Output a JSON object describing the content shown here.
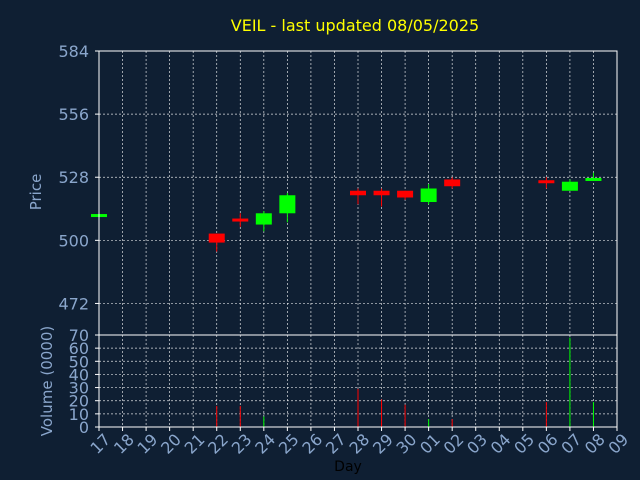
{
  "chart_data": {
    "type": "candlestick",
    "title": "VEIL - last updated 08/05/2025",
    "colors": {
      "background": "#0f1f33",
      "up": "#00ff00",
      "down": "#ff0000",
      "title": "#ffff00",
      "tick": "#8aa6cc",
      "grid": "#ffffff"
    },
    "x_categories": [
      "17",
      "18",
      "19",
      "20",
      "21",
      "22",
      "23",
      "24",
      "25",
      "26",
      "27",
      "28",
      "29",
      "30",
      "01",
      "02",
      "03",
      "04",
      "05",
      "06",
      "07",
      "08",
      "09"
    ],
    "xlabel": "Day",
    "price": {
      "ylabel": "Price",
      "ylim": [
        458,
        584
      ],
      "ticks": [
        472,
        500,
        528,
        556,
        584
      ],
      "candles": [
        {
          "x": "17",
          "open": 511,
          "close": 511,
          "high": 511,
          "low": 511,
          "dir": "up"
        },
        {
          "x": "22",
          "open": 503,
          "close": 499,
          "high": 503,
          "low": 495,
          "dir": "down"
        },
        {
          "x": "23",
          "open": 509,
          "close": 509,
          "high": 512,
          "low": 506,
          "dir": "down"
        },
        {
          "x": "24",
          "open": 507,
          "close": 512,
          "high": 513,
          "low": 504,
          "dir": "up"
        },
        {
          "x": "25",
          "open": 512,
          "close": 520,
          "high": 521,
          "low": 508,
          "dir": "up"
        },
        {
          "x": "28",
          "open": 522,
          "close": 520,
          "high": 523,
          "low": 516,
          "dir": "down"
        },
        {
          "x": "29",
          "open": 522,
          "close": 520,
          "high": 523,
          "low": 515,
          "dir": "down"
        },
        {
          "x": "30",
          "open": 522,
          "close": 519,
          "high": 522,
          "low": 518,
          "dir": "down"
        },
        {
          "x": "01",
          "open": 517,
          "close": 523,
          "high": 525,
          "low": 516,
          "dir": "up"
        },
        {
          "x": "02",
          "open": 527,
          "close": 524,
          "high": 528,
          "low": 523,
          "dir": "down"
        },
        {
          "x": "06",
          "open": 526,
          "close": 525,
          "high": 528,
          "low": 523,
          "dir": "down"
        },
        {
          "x": "07",
          "open": 522,
          "close": 526,
          "high": 527,
          "low": 522,
          "dir": "up"
        },
        {
          "x": "08",
          "open": 527,
          "close": 527,
          "high": 530,
          "low": 527,
          "dir": "up"
        }
      ]
    },
    "volume": {
      "ylabel": "Volume (0000)",
      "ylim": [
        0,
        70
      ],
      "ticks": [
        0,
        10,
        20,
        30,
        40,
        50,
        60,
        70
      ],
      "bars": [
        {
          "x": "22",
          "value": 16,
          "dir": "down"
        },
        {
          "x": "23",
          "value": 16,
          "dir": "down"
        },
        {
          "x": "24",
          "value": 8,
          "dir": "up"
        },
        {
          "x": "28",
          "value": 29,
          "dir": "down"
        },
        {
          "x": "29",
          "value": 21,
          "dir": "down"
        },
        {
          "x": "30",
          "value": 17,
          "dir": "down"
        },
        {
          "x": "01",
          "value": 6,
          "dir": "up"
        },
        {
          "x": "02",
          "value": 6,
          "dir": "down"
        },
        {
          "x": "06",
          "value": 19,
          "dir": "down"
        },
        {
          "x": "07",
          "value": 68,
          "dir": "up"
        },
        {
          "x": "08",
          "value": 19,
          "dir": "up"
        }
      ]
    }
  }
}
